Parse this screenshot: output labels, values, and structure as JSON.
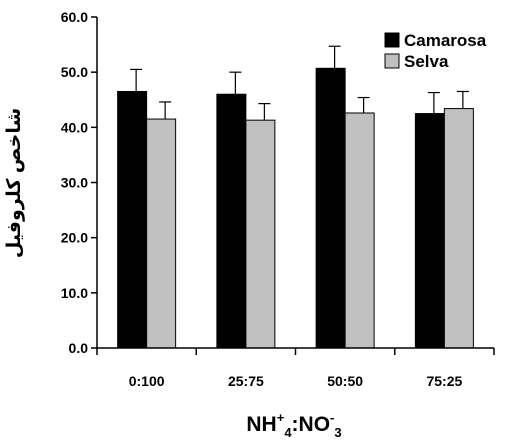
{
  "chart_data": {
    "type": "bar",
    "categories": [
      "0:100",
      "25:75",
      "50:50",
      "75:25"
    ],
    "series": [
      {
        "name": "Camarosa",
        "color": "#000000",
        "values": [
          46.5,
          46.0,
          50.7,
          42.5
        ],
        "errors": [
          4.0,
          4.0,
          4.0,
          3.8
        ]
      },
      {
        "name": "Selva",
        "color": "#c0c0c0",
        "values": [
          41.5,
          41.3,
          42.6,
          43.4
        ],
        "errors": [
          3.1,
          3.0,
          2.8,
          3.1
        ]
      }
    ],
    "y_ticks": [
      "0.0",
      "10.0",
      "20.0",
      "30.0",
      "40.0",
      "50.0",
      "60.0"
    ],
    "ylim": [
      0,
      60
    ],
    "ylabel": "شاخص کلروفیل",
    "xlabel": {
      "part1": "NH",
      "sup1": "+",
      "sub1": "4",
      "colon": ":NO",
      "sup2": "-",
      "sub2": "3"
    },
    "legend_position": "top-right",
    "grid": false
  }
}
